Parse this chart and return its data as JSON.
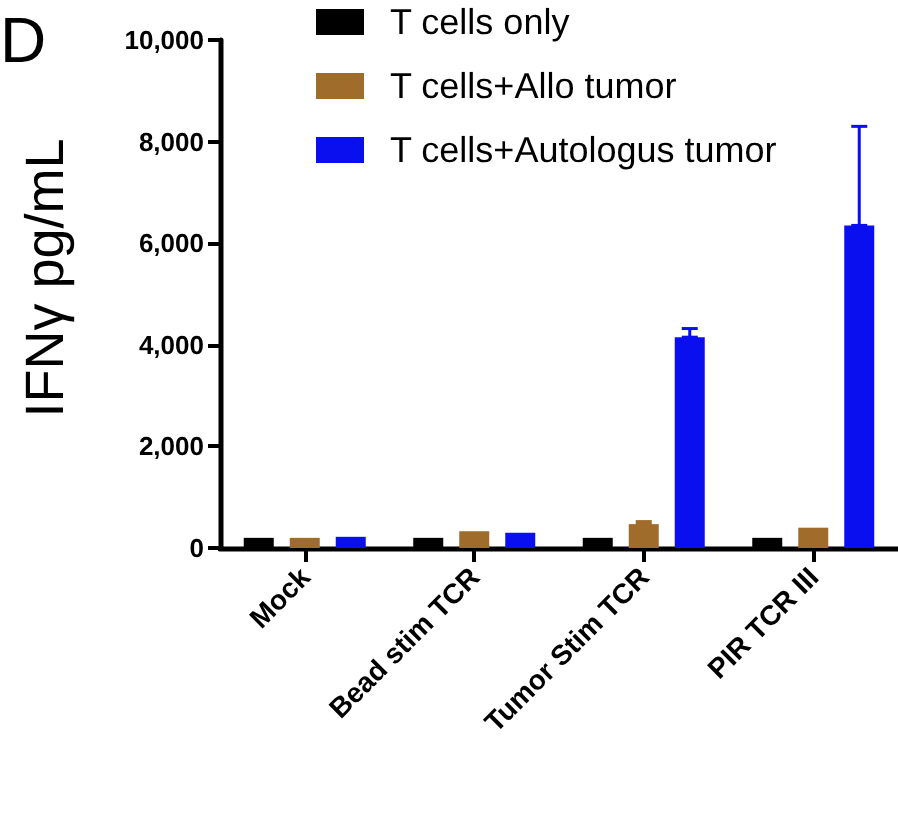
{
  "chart_data": {
    "type": "bar",
    "title": "D",
    "ylabel": "IFNγ pg/mL",
    "categories": [
      "Mock",
      "Bead stim TCR",
      "Tumor Stim TCR",
      "PIR TCR III"
    ],
    "series": [
      {
        "name": "T cells only",
        "color": "#000000",
        "values": [
          200,
          200,
          200,
          200
        ]
      },
      {
        "name": "T cells+Allo tumor",
        "color": "#a06c2c",
        "values": [
          200,
          330,
          470,
          400
        ],
        "errors": [
          null,
          null,
          [
            470,
            520
          ],
          null
        ]
      },
      {
        "name": "T cells+Autologus tumor",
        "color": "#0a0ff0",
        "values": [
          220,
          300,
          4150,
          6350
        ],
        "errors": [
          null,
          null,
          [
            4150,
            4320
          ],
          [
            6350,
            8300
          ]
        ]
      }
    ],
    "ylim": [
      0,
      10000
    ],
    "yticks": [
      {
        "value": 0,
        "label": "0"
      },
      {
        "value": 2000,
        "label": "2,000"
      },
      {
        "value": 4000,
        "label": "4,000"
      },
      {
        "value": 6000,
        "label": "6,000"
      },
      {
        "value": 8000,
        "label": "8,000"
      },
      {
        "value": 10000,
        "label": "10,000"
      }
    ],
    "grid": false,
    "legend": "top"
  }
}
